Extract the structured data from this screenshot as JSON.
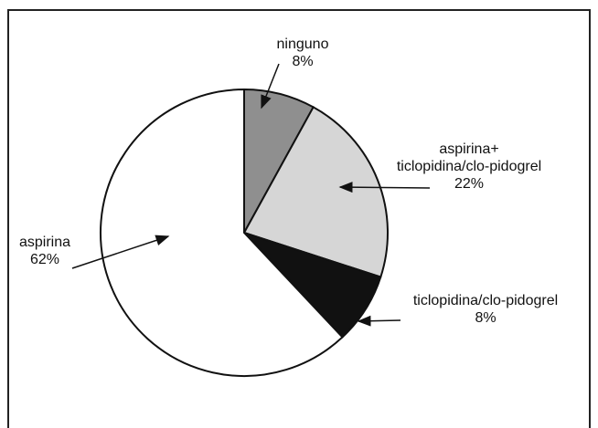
{
  "chart_data": {
    "type": "pie",
    "title": "",
    "categories": [
      "ninguno",
      "aspirina+ ticlopidina/clo-pidogrel",
      "ticlopidina/clo-pidogrel",
      "aspirina"
    ],
    "values": [
      8,
      22,
      8,
      62
    ],
    "slices": [
      {
        "label_lines": [
          "ninguno"
        ],
        "value": 8,
        "value_label": "8%",
        "color": "#8f8f8f"
      },
      {
        "label_lines": [
          "aspirina+",
          "ticlopidina/clo-pidogrel"
        ],
        "value": 22,
        "value_label": "22%",
        "color": "#d6d6d6"
      },
      {
        "label_lines": [
          "ticlopidina/clo-pidogrel"
        ],
        "value": 8,
        "value_label": "8%",
        "color": "#111111"
      },
      {
        "label_lines": [
          "aspirina"
        ],
        "value": 62,
        "value_label": "62%",
        "color": "#ffffff"
      }
    ],
    "legend": "none",
    "grid": false
  }
}
